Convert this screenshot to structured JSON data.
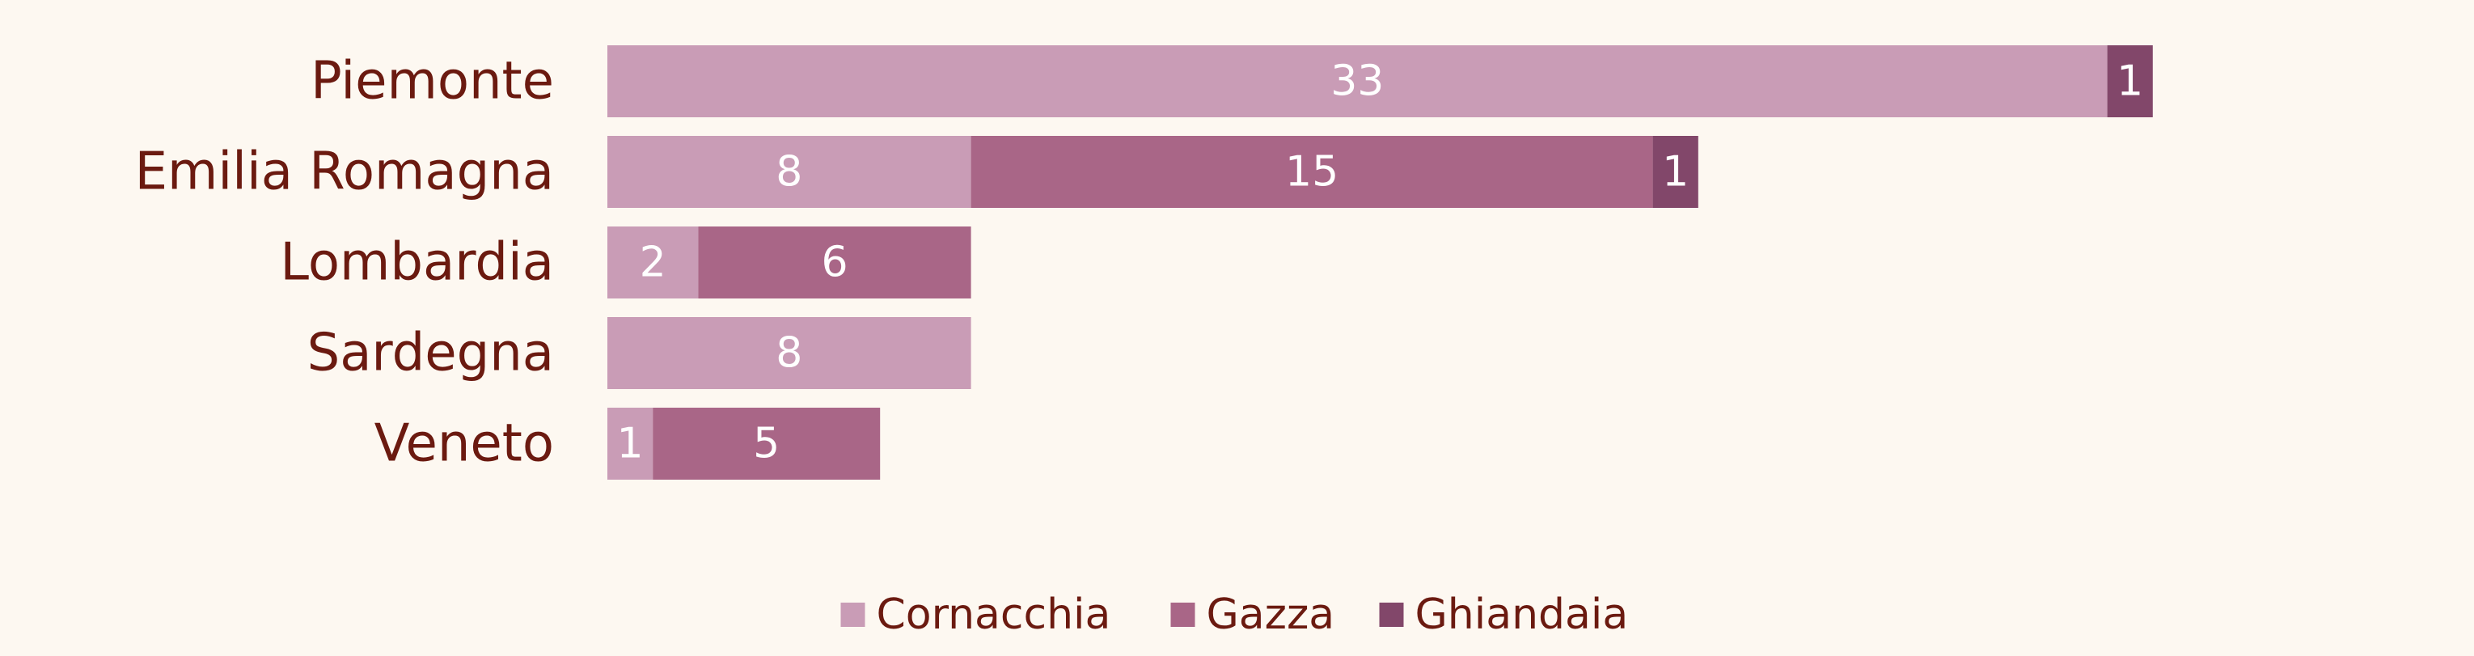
{
  "chart_data": {
    "type": "bar",
    "orientation": "horizontal",
    "stacked": true,
    "categories": [
      "Piemonte",
      "Emilia Romagna",
      "Lombardia",
      "Sardegna",
      "Veneto"
    ],
    "series": [
      {
        "name": "Cornacchia",
        "color": "#c99cb6",
        "values": [
          33,
          8,
          2,
          8,
          1
        ]
      },
      {
        "name": "Gazza",
        "color": "#a96687",
        "values": [
          0,
          15,
          6,
          0,
          5
        ]
      },
      {
        "name": "Ghiandaia",
        "color": "#82476a",
        "values": [
          1,
          1,
          0,
          0,
          0
        ]
      }
    ],
    "xlim": [
      0,
      34
    ],
    "grid": false,
    "legend_position": "bottom-center",
    "data_labels": true,
    "colors": {
      "background": "#fdf8f1",
      "category_text": "#6b1a10",
      "value_text": "#ffffff"
    }
  }
}
